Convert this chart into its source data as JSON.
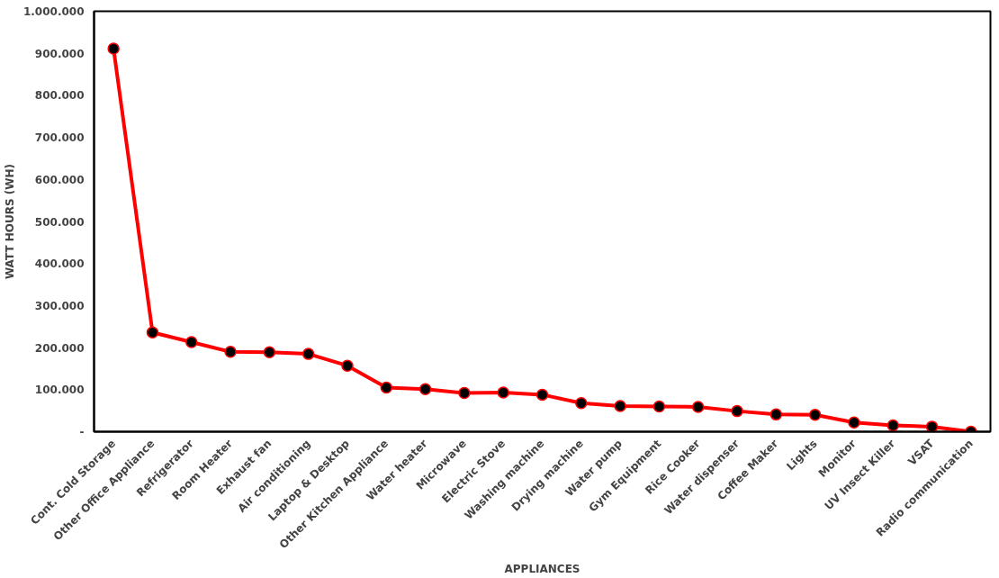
{
  "chart_data": {
    "type": "line",
    "xlabel": "APPLIANCES",
    "ylabel": "WATT HOURS (WH)",
    "categories": [
      "Cont. Cold Storage",
      "Other Office Appliance",
      "Refrigerator",
      "Room Heater",
      "Exhaust fan",
      "Air conditioning",
      "Laptop & Desktop",
      "Other Kitchen Appliance",
      "Water heater",
      "Microwave",
      "Electric Stove",
      "Washing machine",
      "Drying machine",
      "Water pump",
      "Gym Equipment",
      "Rice Cooker",
      "Water dispenser",
      "Coffee Maker",
      "Lights",
      "Monitor",
      "UV Insect Killer",
      "VSAT",
      "Radio communication"
    ],
    "series": [
      {
        "color": "#ff0000",
        "values": [
          911000,
          236000,
          213000,
          190000,
          189000,
          185000,
          157000,
          105000,
          101000,
          92000,
          93000,
          88000,
          68000,
          61000,
          60000,
          59000,
          49000,
          41000,
          40000,
          22000,
          15000,
          12000,
          0
        ]
      }
    ],
    "ylim": [
      0,
      1000000
    ],
    "yticks": [
      {
        "value": 0,
        "label": "-"
      },
      {
        "value": 100000,
        "label": "100.000"
      },
      {
        "value": 200000,
        "label": "200.000"
      },
      {
        "value": 300000,
        "label": "300.000"
      },
      {
        "value": 400000,
        "label": "400.000"
      },
      {
        "value": 500000,
        "label": "500.000"
      },
      {
        "value": 600000,
        "label": "600.000"
      },
      {
        "value": 700000,
        "label": "700.000"
      },
      {
        "value": 800000,
        "label": "800.000"
      },
      {
        "value": 900000,
        "label": "900.000"
      },
      {
        "value": 1000000,
        "label": "1.000.000"
      }
    ],
    "grid": false,
    "marker": "circle",
    "line_style": "solid"
  }
}
